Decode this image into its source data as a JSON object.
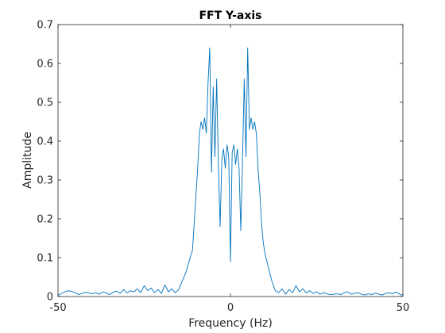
{
  "chart_data": {
    "type": "line",
    "title": "FFT Y-axis",
    "xlabel": "Frequency (Hz)",
    "ylabel": "Amplitude",
    "xlim": [
      -50,
      50
    ],
    "ylim": [
      0,
      0.7
    ],
    "xticks": [
      -50,
      0,
      50
    ],
    "yticks": [
      0,
      0.1,
      0.2,
      0.3,
      0.4,
      0.5,
      0.6,
      0.7
    ],
    "xtick_labels": [
      "-50",
      "0",
      "50"
    ],
    "ytick_labels": [
      "0",
      "0.1",
      "0.2",
      "0.3",
      "0.4",
      "0.5",
      "0.6",
      "0.7"
    ],
    "grid": false,
    "series": [
      {
        "color": "#0072BD",
        "x": [
          -50,
          -49,
          -48,
          -47,
          -46,
          -45,
          -44,
          -43,
          -42,
          -41,
          -40,
          -39,
          -38,
          -37,
          -36,
          -35,
          -34,
          -33,
          -32,
          -31,
          -30,
          -29,
          -28,
          -27,
          -26,
          -25,
          -24,
          -23,
          -22,
          -21,
          -20,
          -19,
          -18,
          -17,
          -16,
          -15,
          -14,
          -13,
          -12,
          -11,
          -10,
          -9.5,
          -9,
          -8.5,
          -8,
          -7.5,
          -7,
          -6.5,
          -6,
          -5.5,
          -5,
          -4.5,
          -4,
          -3.5,
          -3,
          -2.5,
          -2,
          -1.5,
          -1,
          -0.5,
          0,
          0.5,
          1,
          1.5,
          2,
          2.5,
          3,
          3.5,
          4,
          4.5,
          5,
          5.5,
          6,
          6.5,
          7,
          7.5,
          8,
          8.5,
          9,
          9.5,
          10,
          11,
          12,
          13,
          14,
          15,
          16,
          17,
          18,
          19,
          20,
          21,
          22,
          23,
          24,
          25,
          26,
          27,
          28,
          29,
          30,
          31,
          32,
          33,
          34,
          35,
          36,
          37,
          38,
          39,
          40,
          41,
          42,
          43,
          44,
          45,
          46,
          47,
          48,
          49,
          50
        ],
        "y": [
          0.003,
          0.008,
          0.012,
          0.015,
          0.013,
          0.01,
          0.005,
          0.008,
          0.011,
          0.009,
          0.007,
          0.01,
          0.006,
          0.012,
          0.009,
          0.005,
          0.011,
          0.014,
          0.008,
          0.018,
          0.009,
          0.015,
          0.012,
          0.02,
          0.01,
          0.028,
          0.015,
          0.022,
          0.01,
          0.018,
          0.008,
          0.03,
          0.012,
          0.02,
          0.01,
          0.018,
          0.04,
          0.06,
          0.09,
          0.12,
          0.26,
          0.33,
          0.42,
          0.45,
          0.43,
          0.46,
          0.42,
          0.55,
          0.64,
          0.32,
          0.54,
          0.36,
          0.56,
          0.34,
          0.18,
          0.35,
          0.38,
          0.33,
          0.39,
          0.36,
          0.09,
          0.37,
          0.39,
          0.34,
          0.38,
          0.33,
          0.17,
          0.35,
          0.56,
          0.36,
          0.64,
          0.43,
          0.46,
          0.43,
          0.45,
          0.42,
          0.33,
          0.27,
          0.19,
          0.14,
          0.11,
          0.075,
          0.04,
          0.015,
          0.01,
          0.02,
          0.006,
          0.018,
          0.01,
          0.028,
          0.012,
          0.02,
          0.009,
          0.015,
          0.008,
          0.012,
          0.006,
          0.01,
          0.007,
          0.005,
          0.006,
          0.007,
          0.005,
          0.01,
          0.012,
          0.006,
          0.008,
          0.01,
          0.006,
          0.004,
          0.007,
          0.005,
          0.009,
          0.006,
          0.004,
          0.008,
          0.01,
          0.007,
          0.012,
          0.006,
          0.003
        ]
      }
    ]
  }
}
